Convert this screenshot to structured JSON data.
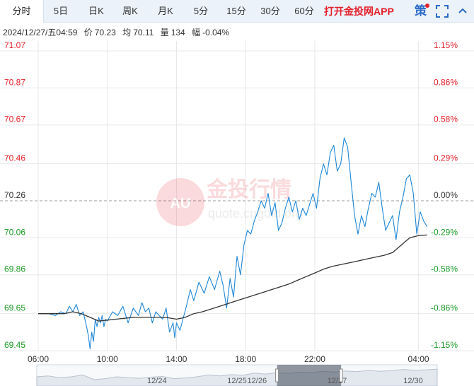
{
  "tabs": [
    {
      "label": "分时",
      "active": true
    },
    {
      "label": "5日",
      "active": false
    },
    {
      "label": "日K",
      "active": false
    },
    {
      "label": "周K",
      "active": false
    },
    {
      "label": "月K",
      "active": false
    },
    {
      "label": "5分",
      "active": false
    },
    {
      "label": "15分",
      "active": false
    },
    {
      "label": "30分",
      "active": false
    },
    {
      "label": "60分",
      "active": false
    }
  ],
  "promo_label": "打开金投网APP",
  "strategy_label": "策",
  "icons": {
    "fullscreen": "fullscreen-icon",
    "collapse": "collapse-icon"
  },
  "info": {
    "datetime": "2024/12/27/五04:59",
    "price_label": "价",
    "price_value": "70.23",
    "avg_label": "均",
    "avg_value": "70.11",
    "volume_label": "量",
    "volume_value": "134",
    "change_label": "幅",
    "change_value": "-0.04%"
  },
  "watermark": {
    "brand": "金投行情",
    "logo": "AU",
    "url": "quote.cngold.org"
  },
  "colors": {
    "price_line": "#1f87d6",
    "avg_line": "#333333",
    "up": "#e4212b",
    "down": "#1a9a25",
    "base": "#333333"
  },
  "chart_data": {
    "type": "line",
    "ylim": [
      69.45,
      71.07
    ],
    "base_price": 70.26,
    "y_ticks": [
      "71.07",
      "70.87",
      "70.67",
      "70.46",
      "70.26",
      "70.06",
      "69.86",
      "69.65",
      "69.45"
    ],
    "pct_ticks": [
      "1.15%",
      "0.86%",
      "0.58%",
      "0.29%",
      "0.00%",
      "-0.29%",
      "-0.58%",
      "-0.86%",
      "-1.15%"
    ],
    "x_ticks": [
      "06:00",
      "10:00",
      "14:00",
      "18:00",
      "22:00",
      "04:00"
    ],
    "x_tick_hours": [
      0,
      4,
      8,
      12,
      16,
      22
    ],
    "x_range_hours": [
      0,
      23
    ],
    "series": [
      {
        "name": "price",
        "x": [
          0,
          0.6,
          1.0,
          1.3,
          1.6,
          1.8,
          2.0,
          2.2,
          2.4,
          2.6,
          2.8,
          2.9,
          3.0,
          3.1,
          3.2,
          3.3,
          3.4,
          3.5,
          3.6,
          3.7,
          3.8,
          3.9,
          4.0,
          4.3,
          4.6,
          4.9,
          5.2,
          5.5,
          5.8,
          6.0,
          6.2,
          6.4,
          6.6,
          6.8,
          7.0,
          7.2,
          7.4,
          7.6,
          7.8,
          7.9,
          8.0,
          8.2,
          8.4,
          8.6,
          8.8,
          9.0,
          9.3,
          9.6,
          9.9,
          10.2,
          10.5,
          10.7,
          10.9,
          11.1,
          11.3,
          11.5,
          11.7,
          11.9,
          12.1,
          12.3,
          12.5,
          12.7,
          12.9,
          13.1,
          13.3,
          13.5,
          13.7,
          13.9,
          14.1,
          14.3,
          14.5,
          14.7,
          14.9,
          15.1,
          15.3,
          15.5,
          15.7,
          15.9,
          16.1,
          16.3,
          16.5,
          16.7,
          16.9,
          17.1,
          17.3,
          17.5,
          17.7,
          17.9,
          18.1,
          18.3,
          18.5,
          18.7,
          18.9,
          19.1,
          19.3,
          19.5,
          19.7,
          19.9,
          20.1,
          20.3,
          20.5,
          20.7,
          20.9,
          21.1,
          21.3,
          21.5,
          21.7,
          21.9,
          22.1,
          22.3,
          22.5
        ],
        "y": [
          69.65,
          69.65,
          69.64,
          69.66,
          69.65,
          69.69,
          69.66,
          69.7,
          69.64,
          69.66,
          69.58,
          69.53,
          69.46,
          69.55,
          69.5,
          69.62,
          69.58,
          69.63,
          69.6,
          69.64,
          69.58,
          69.62,
          69.61,
          69.66,
          69.64,
          69.69,
          69.6,
          69.68,
          69.64,
          69.71,
          69.66,
          69.68,
          69.6,
          69.66,
          69.64,
          69.62,
          69.68,
          69.55,
          69.6,
          69.52,
          69.6,
          69.56,
          69.63,
          69.7,
          69.78,
          69.72,
          69.82,
          69.76,
          69.85,
          69.78,
          69.88,
          69.8,
          69.68,
          69.84,
          69.74,
          69.96,
          69.86,
          70.02,
          70.1,
          70.08,
          70.15,
          70.2,
          70.26,
          70.22,
          70.3,
          70.18,
          70.25,
          70.1,
          70.14,
          70.22,
          70.28,
          70.2,
          70.26,
          70.16,
          70.22,
          70.18,
          70.24,
          70.3,
          70.22,
          70.38,
          70.46,
          70.4,
          70.52,
          70.56,
          70.42,
          70.46,
          70.6,
          70.55,
          70.36,
          70.18,
          70.08,
          70.18,
          70.12,
          70.22,
          70.3,
          70.28,
          70.36,
          70.22,
          70.1,
          70.14,
          70.18,
          70.05,
          70.2,
          70.28,
          70.38,
          70.4,
          70.3,
          70.08,
          70.2,
          70.15,
          70.12
        ]
      },
      {
        "name": "average",
        "x": [
          0,
          0.5,
          1.0,
          1.5,
          2.0,
          2.5,
          3.0,
          3.5,
          4.0,
          4.5,
          5.0,
          5.5,
          6.0,
          6.5,
          7.0,
          7.5,
          8.0,
          8.5,
          9.0,
          9.5,
          10.0,
          10.5,
          11.0,
          11.5,
          12.0,
          12.5,
          13.0,
          13.5,
          14.0,
          14.5,
          15.0,
          15.5,
          16.0,
          16.5,
          17.0,
          17.5,
          18.0,
          18.5,
          19.0,
          19.5,
          20.0,
          20.5,
          21.0,
          21.5,
          22.0,
          22.5
        ],
        "y": [
          69.65,
          69.65,
          69.65,
          69.65,
          69.66,
          69.65,
          69.63,
          69.61,
          69.615,
          69.62,
          69.625,
          69.63,
          69.63,
          69.63,
          69.63,
          69.628,
          69.62,
          69.63,
          69.65,
          69.66,
          69.675,
          69.69,
          69.705,
          69.72,
          69.735,
          69.75,
          69.765,
          69.78,
          69.795,
          69.81,
          69.83,
          69.85,
          69.87,
          69.89,
          69.905,
          69.915,
          69.925,
          69.935,
          69.945,
          69.955,
          69.965,
          69.98,
          70.02,
          70.06,
          70.072,
          70.075
        ]
      }
    ]
  },
  "navigator": {
    "date_labels": [
      "12/24",
      "12/25",
      "12/26",
      "12/27",
      "12/30"
    ],
    "label_hours": [
      0.3,
      0.5,
      0.55,
      0.75,
      0.94
    ],
    "window_start": 0.6,
    "window_end": 0.76,
    "profile": [
      0.5,
      0.55,
      0.45,
      0.5,
      0.6,
      0.35,
      0.4,
      0.5,
      0.45,
      0.42,
      0.48,
      0.52,
      0.4,
      0.44,
      0.5,
      0.6,
      0.55,
      0.62,
      0.58,
      0.7,
      0.65,
      0.72,
      0.68,
      0.75,
      0.72,
      0.8,
      0.76,
      0.82,
      0.78,
      0.85,
      0.8,
      0.84,
      0.9,
      0.86,
      0.88,
      0.92
    ]
  }
}
